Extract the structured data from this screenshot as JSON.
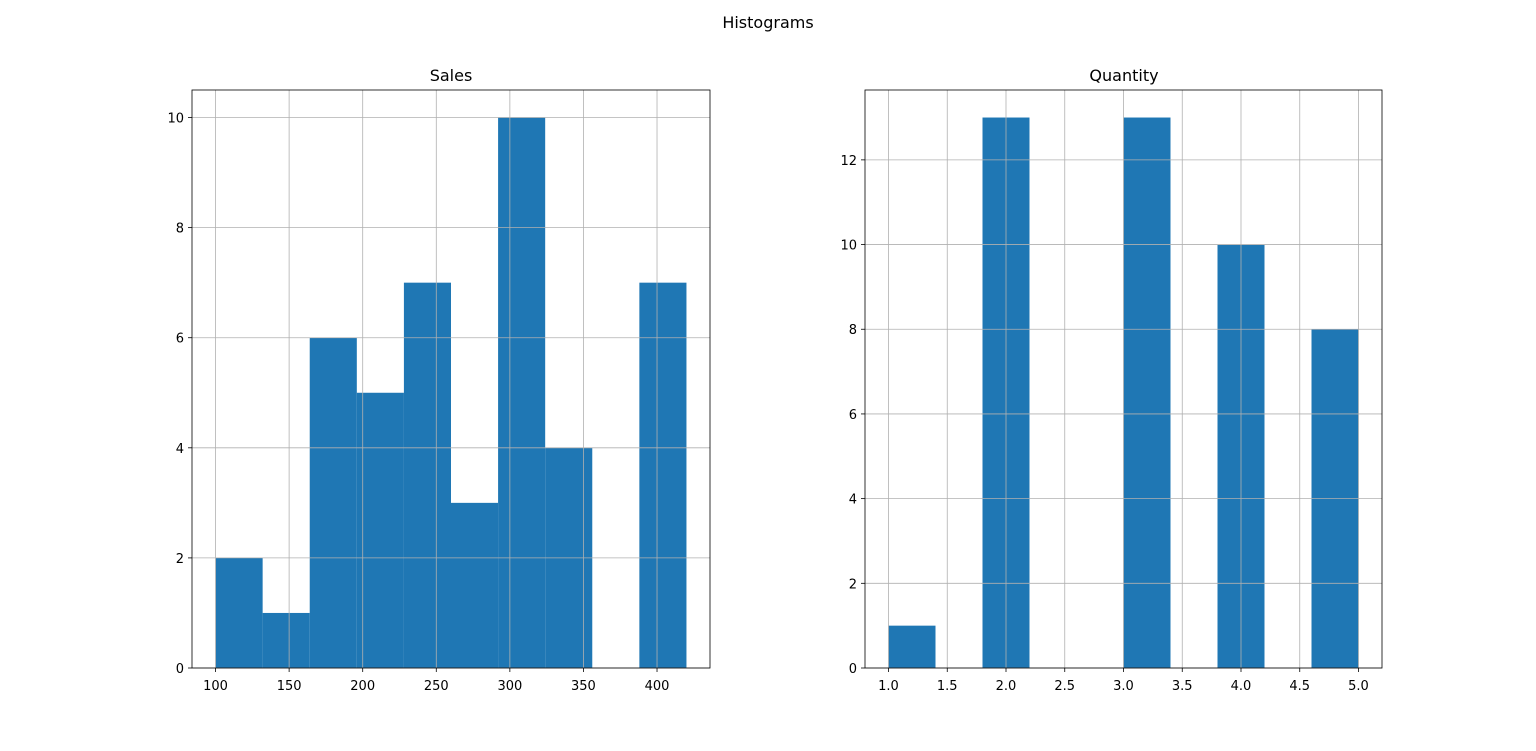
{
  "figure": {
    "suptitle": "Histograms"
  },
  "colors": {
    "bar": "#1f77b4",
    "grid": "#b0b0b0",
    "axis": "#000000"
  },
  "chart_data": [
    {
      "type": "bar",
      "title": "Sales",
      "xlabel": "",
      "ylabel": "",
      "grid": true,
      "xlim": [
        84,
        436
      ],
      "ylim": [
        0,
        10.5
      ],
      "xticks": [
        100,
        150,
        200,
        250,
        300,
        350,
        400
      ],
      "xtick_labels": [
        "100",
        "150",
        "200",
        "250",
        "300",
        "350",
        "400"
      ],
      "yticks": [
        0,
        2,
        4,
        6,
        8,
        10
      ],
      "ytick_labels": [
        "0",
        "2",
        "4",
        "6",
        "8",
        "10"
      ],
      "bin_edges": [
        100,
        132,
        164,
        196,
        228,
        260,
        292,
        324,
        356,
        388,
        420
      ],
      "counts": [
        2,
        1,
        6,
        5,
        7,
        3,
        10,
        4,
        0,
        7
      ]
    },
    {
      "type": "bar",
      "title": "Quantity",
      "xlabel": "",
      "ylabel": "",
      "grid": true,
      "xlim": [
        0.8,
        5.2
      ],
      "ylim": [
        0,
        13.65
      ],
      "xticks": [
        1.0,
        1.5,
        2.0,
        2.5,
        3.0,
        3.5,
        4.0,
        4.5,
        5.0
      ],
      "xtick_labels": [
        "1.0",
        "1.5",
        "2.0",
        "2.5",
        "3.0",
        "3.5",
        "4.0",
        "4.5",
        "5.0"
      ],
      "yticks": [
        0,
        2,
        4,
        6,
        8,
        10,
        12
      ],
      "ytick_labels": [
        "0",
        "2",
        "4",
        "6",
        "8",
        "10",
        "12"
      ],
      "bin_edges": [
        1.0,
        1.4,
        1.8,
        2.2,
        2.6,
        3.0,
        3.4,
        3.8,
        4.2,
        4.6,
        5.0
      ],
      "counts": [
        1,
        0,
        13,
        0,
        0,
        13,
        0,
        10,
        0,
        8
      ]
    }
  ]
}
